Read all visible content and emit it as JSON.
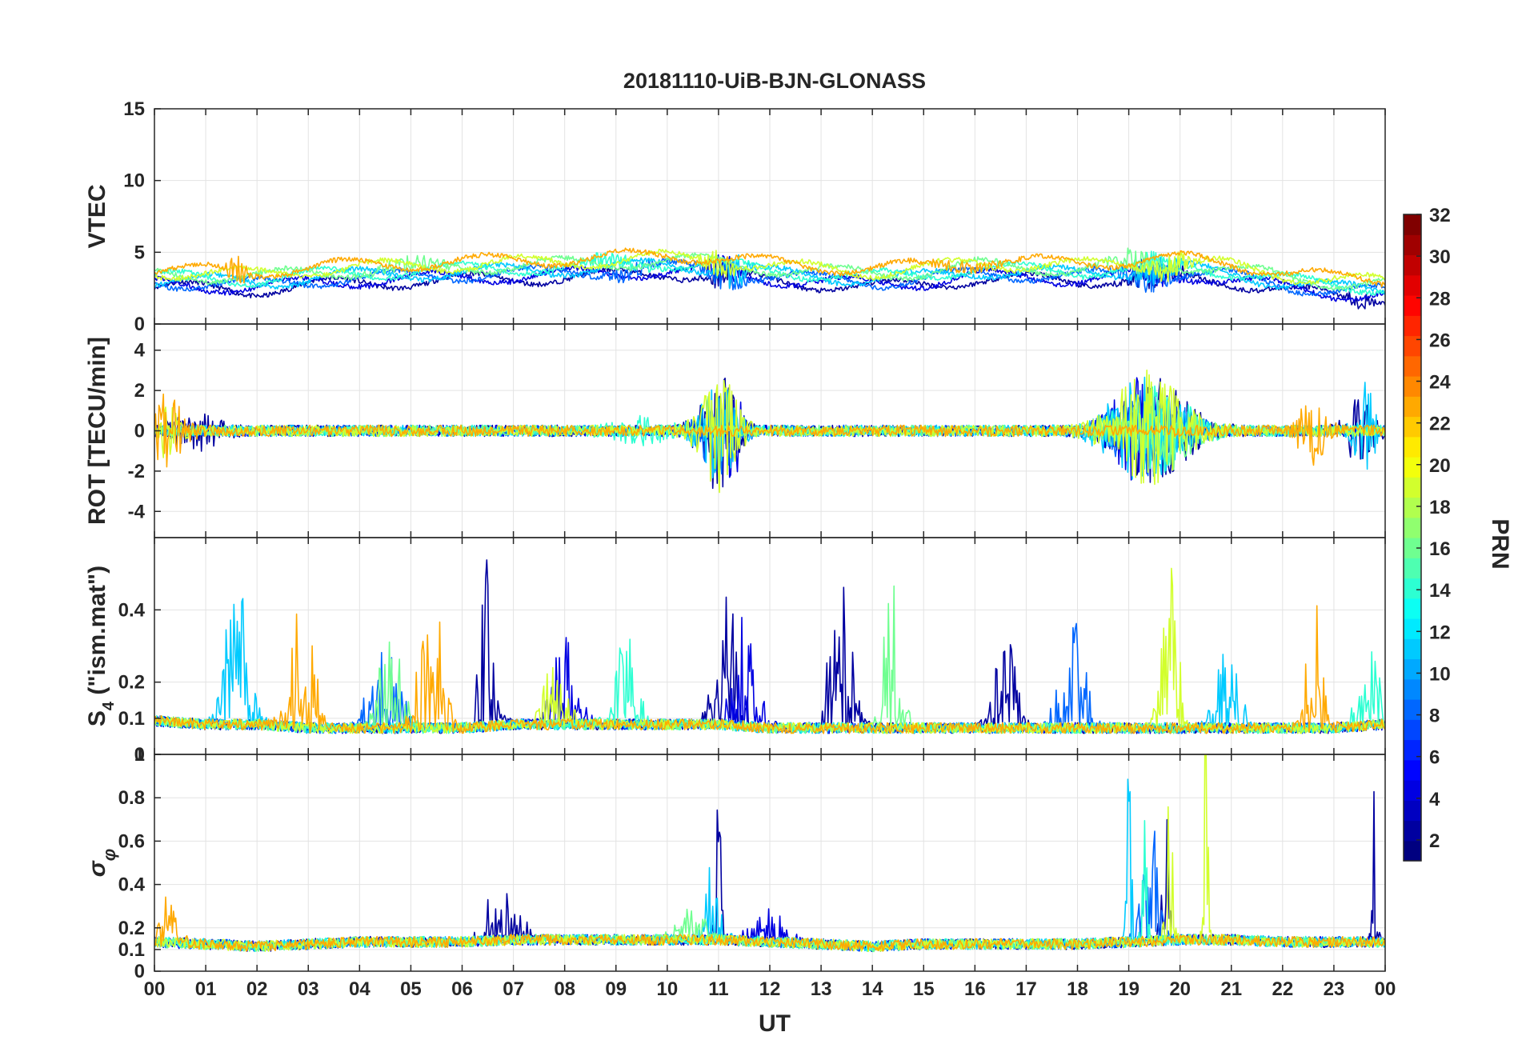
{
  "chart_data": {
    "type": "line",
    "title": "20181110-UiB-BJN-GLONASS",
    "xlabel": "UT",
    "x_unit": "hour",
    "x_range": [
      0,
      24
    ],
    "x_ticks": [
      0,
      1,
      2,
      3,
      4,
      5,
      6,
      7,
      8,
      9,
      10,
      11,
      12,
      13,
      14,
      15,
      16,
      17,
      18,
      19,
      20,
      21,
      22,
      23,
      24
    ],
    "x_tick_labels": [
      "00",
      "01",
      "02",
      "03",
      "04",
      "05",
      "06",
      "07",
      "08",
      "09",
      "10",
      "11",
      "12",
      "13",
      "14",
      "15",
      "16",
      "17",
      "18",
      "19",
      "20",
      "21",
      "22",
      "23",
      "00"
    ],
    "grid": true,
    "colorbar": {
      "label": "PRN",
      "range": [
        1,
        32
      ],
      "ticks": [
        2,
        4,
        6,
        8,
        10,
        12,
        14,
        16,
        18,
        20,
        22,
        24,
        26,
        28,
        30,
        32
      ],
      "colormap": "jet",
      "segments": 32
    },
    "panels": [
      {
        "id": "vtec",
        "ylabel": "VTEC",
        "ylim": [
          0,
          15
        ],
        "yticks": [
          0,
          5,
          10,
          15
        ],
        "baseline": [
          3.2,
          3.1,
          3.0,
          3.3,
          3.5,
          3.6,
          3.7,
          3.8,
          3.9,
          4.0,
          4.2,
          4.0,
          3.6,
          3.4,
          3.2,
          3.4,
          3.8,
          3.7,
          3.6,
          3.8,
          3.9,
          3.6,
          3.0,
          2.6,
          2.5
        ],
        "series": [
          {
            "prn": 2,
            "events": [
              [
                11.1,
                4,
                0.3
              ],
              [
                19.5,
                3,
                0.5
              ],
              [
                23.5,
                1.5,
                0.3
              ]
            ]
          },
          {
            "prn": 4,
            "events": [
              [
                11.1,
                3,
                0.3
              ],
              [
                19.5,
                3,
                0.4
              ]
            ]
          },
          {
            "prn": 8,
            "events": [
              [
                11.1,
                3,
                0.4
              ],
              [
                19.3,
                3,
                0.5
              ],
              [
                9.3,
                1.5,
                0.5
              ]
            ]
          },
          {
            "prn": 11,
            "events": [
              [
                11.3,
                4,
                0.3
              ],
              [
                19.6,
                2.5,
                0.4
              ]
            ]
          },
          {
            "prn": 14,
            "events": [
              [
                9.0,
                1.5,
                0.6
              ],
              [
                19.5,
                2,
                0.4
              ]
            ]
          },
          {
            "prn": 16,
            "events": [
              [
                19.2,
                2.5,
                0.5
              ],
              [
                5.0,
                1.5,
                0.7
              ]
            ]
          },
          {
            "prn": 19,
            "events": [
              [
                11.0,
                3,
                0.3
              ],
              [
                19.8,
                3,
                0.4
              ]
            ]
          },
          {
            "prn": 23,
            "events": [
              [
                1.6,
                3,
                0.2
              ],
              [
                15.8,
                1,
                0.6
              ]
            ]
          }
        ]
      },
      {
        "id": "rot",
        "ylabel": "ROT [TECU/min]",
        "ylim": [
          -5.3,
          5.3
        ],
        "yticks": [
          -4,
          -2,
          0,
          2,
          4
        ],
        "baseline": [
          0,
          0,
          0,
          0,
          0,
          0,
          0,
          0,
          0,
          0,
          0,
          0,
          0,
          0,
          0,
          0,
          0,
          0,
          0,
          0,
          0,
          0,
          0,
          0,
          0
        ],
        "series": [
          {
            "prn": 2,
            "events": [
              [
                11.0,
                3.5,
                0.4
              ],
              [
                19.5,
                3,
                0.8
              ],
              [
                23.5,
                2,
                0.3
              ],
              [
                0.8,
                1,
                0.5
              ]
            ]
          },
          {
            "prn": 4,
            "events": [
              [
                11.2,
                3,
                0.3
              ],
              [
                19.2,
                3,
                0.6
              ]
            ]
          },
          {
            "prn": 8,
            "events": [
              [
                11.0,
                2.5,
                0.4
              ],
              [
                19.4,
                2.5,
                0.8
              ]
            ]
          },
          {
            "prn": 11,
            "events": [
              [
                11.0,
                3,
                0.4
              ],
              [
                19.3,
                3,
                0.8
              ],
              [
                23.6,
                3,
                0.2
              ]
            ]
          },
          {
            "prn": 14,
            "events": [
              [
                19.5,
                2.5,
                0.8
              ],
              [
                9.5,
                0.6,
                0.6
              ]
            ]
          },
          {
            "prn": 16,
            "events": [
              [
                19.6,
                2.5,
                0.7
              ]
            ]
          },
          {
            "prn": 19,
            "events": [
              [
                11.0,
                3.5,
                0.4
              ],
              [
                19.4,
                3.5,
                0.8
              ],
              [
                0.2,
                1.5,
                0.3
              ]
            ]
          },
          {
            "prn": 23,
            "events": [
              [
                0.2,
                2,
                0.4
              ],
              [
                22.6,
                2,
                0.3
              ]
            ]
          }
        ]
      },
      {
        "id": "s4",
        "ylabel": "S4 (\"ism.mat\")",
        "ylim": [
          0,
          0.6
        ],
        "yticks": [
          0,
          0.1,
          0.2,
          0.4
        ],
        "baseline": [
          0.09,
          0.08,
          0.08,
          0.07,
          0.07,
          0.07,
          0.07,
          0.08,
          0.08,
          0.08,
          0.08,
          0.08,
          0.07,
          0.07,
          0.07,
          0.07,
          0.07,
          0.07,
          0.07,
          0.07,
          0.07,
          0.07,
          0.07,
          0.07,
          0.08
        ],
        "series": [
          {
            "prn": 2,
            "events": [
              [
                6.5,
                0.35,
                0.2
              ],
              [
                11.2,
                0.3,
                0.3
              ],
              [
                13.4,
                0.32,
                0.3
              ],
              [
                16.6,
                0.2,
                0.3
              ]
            ]
          },
          {
            "prn": 4,
            "events": [
              [
                11.5,
                0.25,
                0.3
              ],
              [
                8.0,
                0.2,
                0.3
              ]
            ]
          },
          {
            "prn": 8,
            "events": [
              [
                4.5,
                0.2,
                0.4
              ],
              [
                17.9,
                0.25,
                0.3
              ]
            ]
          },
          {
            "prn": 11,
            "events": [
              [
                1.6,
                0.3,
                0.3
              ],
              [
                20.9,
                0.2,
                0.3
              ]
            ]
          },
          {
            "prn": 14,
            "events": [
              [
                9.2,
                0.2,
                0.3
              ],
              [
                23.7,
                0.15,
                0.3
              ]
            ]
          },
          {
            "prn": 16,
            "events": [
              [
                14.4,
                0.45,
                0.2
              ],
              [
                4.6,
                0.2,
                0.3
              ]
            ]
          },
          {
            "prn": 19,
            "events": [
              [
                19.8,
                0.38,
                0.2
              ],
              [
                7.8,
                0.15,
                0.3
              ]
            ]
          },
          {
            "prn": 23,
            "events": [
              [
                2.9,
                0.28,
                0.3
              ],
              [
                5.4,
                0.3,
                0.3
              ],
              [
                22.6,
                0.35,
                0.2
              ]
            ]
          }
        ]
      },
      {
        "id": "sigma_phi",
        "ylabel": "σφ",
        "ylim": [
          0,
          1
        ],
        "yticks": [
          0,
          0.1,
          0.2,
          0.4,
          0.6,
          0.8,
          1
        ],
        "baseline": [
          0.13,
          0.12,
          0.11,
          0.12,
          0.13,
          0.13,
          0.13,
          0.14,
          0.14,
          0.14,
          0.14,
          0.14,
          0.13,
          0.12,
          0.11,
          0.12,
          0.12,
          0.12,
          0.12,
          0.13,
          0.14,
          0.14,
          0.13,
          0.13,
          0.13
        ],
        "series": [
          {
            "prn": 2,
            "events": [
              [
                11.0,
                0.65,
                0.08
              ],
              [
                6.8,
                0.22,
                0.4
              ],
              [
                19.7,
                0.85,
                0.08
              ],
              [
                23.8,
                0.8,
                0.06
              ]
            ]
          },
          {
            "prn": 4,
            "events": [
              [
                12.0,
                0.1,
                0.5
              ]
            ]
          },
          {
            "prn": 8,
            "events": [
              [
                19.4,
                0.5,
                0.2
              ]
            ]
          },
          {
            "prn": 11,
            "events": [
              [
                10.9,
                0.3,
                0.2
              ],
              [
                19.0,
                0.85,
                0.06
              ]
            ]
          },
          {
            "prn": 14,
            "events": [
              [
                19.3,
                0.85,
                0.06
              ]
            ]
          },
          {
            "prn": 16,
            "events": [
              [
                10.5,
                0.1,
                0.4
              ]
            ]
          },
          {
            "prn": 19,
            "events": [
              [
                20.5,
                0.85,
                0.06
              ],
              [
                19.8,
                0.6,
                0.1
              ]
            ]
          },
          {
            "prn": 23,
            "events": [
              [
                0.3,
                0.2,
                0.2
              ]
            ]
          }
        ]
      }
    ]
  }
}
